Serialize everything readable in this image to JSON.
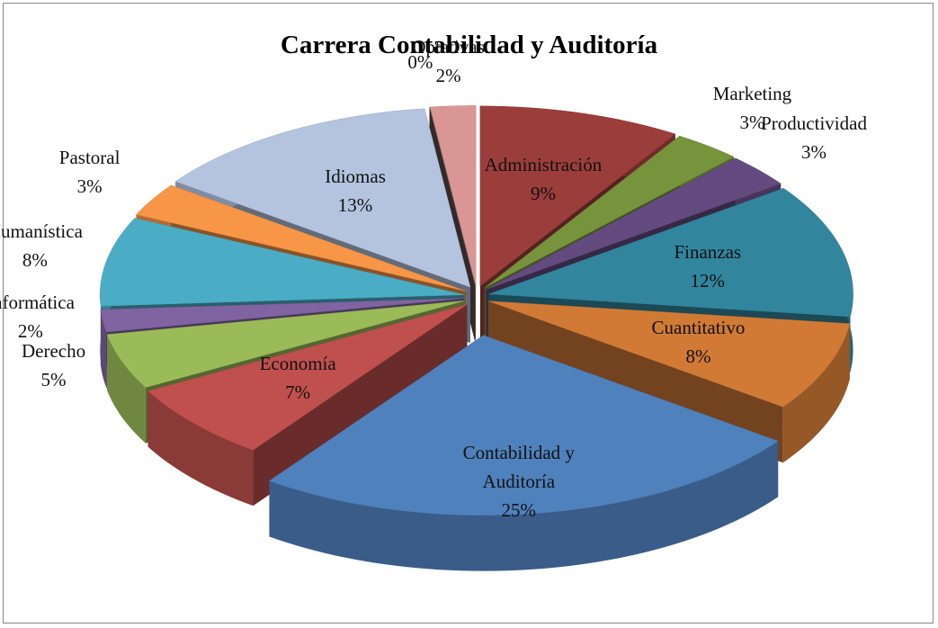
{
  "chart_data": {
    "type": "pie",
    "title": "Carrera Contabilidad y Auditoría",
    "categories": [
      "Administración",
      "Marketing",
      "Productividad",
      "Finanzas",
      "Cuantitativo",
      "Contabilidad y Auditoría",
      "Economía",
      "Derecho",
      "Informática",
      "Humanística",
      "Pastoral",
      "Idiomas",
      null,
      "Optativas"
    ],
    "values": [
      9,
      3,
      3,
      12,
      8,
      25,
      7,
      5,
      2,
      8,
      3,
      13,
      0,
      2
    ],
    "value_labels": [
      "9%",
      "3%",
      "3%",
      "12%",
      "8%",
      "25%",
      "7%",
      "5%",
      "2%",
      "8%",
      "3%",
      "13%",
      "0%",
      "2%"
    ],
    "colors": [
      "#9b3d3b",
      "#77933c",
      "#634b80",
      "#31859c",
      "#d07a36",
      "#4f81bd",
      "#c0504d",
      "#9bbb59",
      "#8064a2",
      "#4bacc6",
      "#f79646",
      "#b4c3de",
      "#5a4a4a",
      "#d99694"
    ]
  }
}
